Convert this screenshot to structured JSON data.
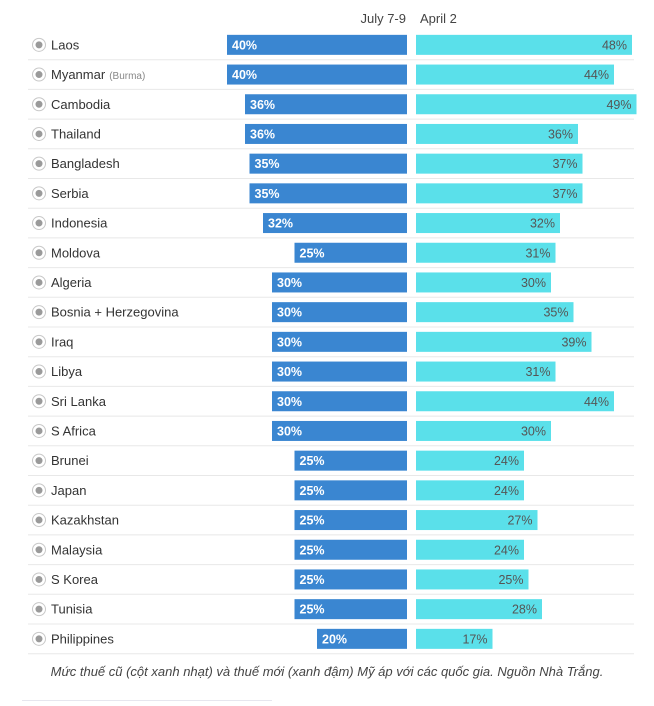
{
  "chart_data": {
    "type": "bar",
    "layout": "mirrored-horizontal",
    "series": [
      {
        "name": "July 7-9",
        "color": "#3a86d1",
        "align": "right",
        "values": [
          40,
          40,
          36,
          36,
          35,
          35,
          32,
          25,
          30,
          30,
          30,
          30,
          30,
          30,
          25,
          25,
          25,
          25,
          25,
          25,
          20
        ]
      },
      {
        "name": "April 2",
        "color": "#5ae0ea",
        "align": "left",
        "values": [
          48,
          44,
          49,
          36,
          37,
          37,
          32,
          31,
          30,
          35,
          39,
          31,
          44,
          30,
          24,
          24,
          27,
          24,
          25,
          28,
          17
        ]
      }
    ],
    "categories": [
      {
        "name": "Laos",
        "note": ""
      },
      {
        "name": "Myanmar",
        "note": "(Burma)"
      },
      {
        "name": "Cambodia",
        "note": ""
      },
      {
        "name": "Thailand",
        "note": ""
      },
      {
        "name": "Bangladesh",
        "note": ""
      },
      {
        "name": "Serbia",
        "note": ""
      },
      {
        "name": "Indonesia",
        "note": ""
      },
      {
        "name": "Moldova",
        "note": ""
      },
      {
        "name": "Algeria",
        "note": ""
      },
      {
        "name": "Bosnia + Herzegovina",
        "note": ""
      },
      {
        "name": "Iraq",
        "note": ""
      },
      {
        "name": "Libya",
        "note": ""
      },
      {
        "name": "Sri Lanka",
        "note": ""
      },
      {
        "name": "S Africa",
        "note": ""
      },
      {
        "name": "Brunei",
        "note": ""
      },
      {
        "name": "Japan",
        "note": ""
      },
      {
        "name": "Kazakhstan",
        "note": ""
      },
      {
        "name": "Malaysia",
        "note": ""
      },
      {
        "name": "S Korea",
        "note": ""
      },
      {
        "name": "Tunisia",
        "note": ""
      },
      {
        "name": "Philippines",
        "note": ""
      }
    ],
    "value_suffix": "%",
    "grid": false,
    "legend": "top-center"
  },
  "caption": "Mức thuế cũ (cột xanh nhạt) và thuế mới (xanh đậm) Mỹ áp với các quốc gia. Nguồn Nhà Trắng."
}
